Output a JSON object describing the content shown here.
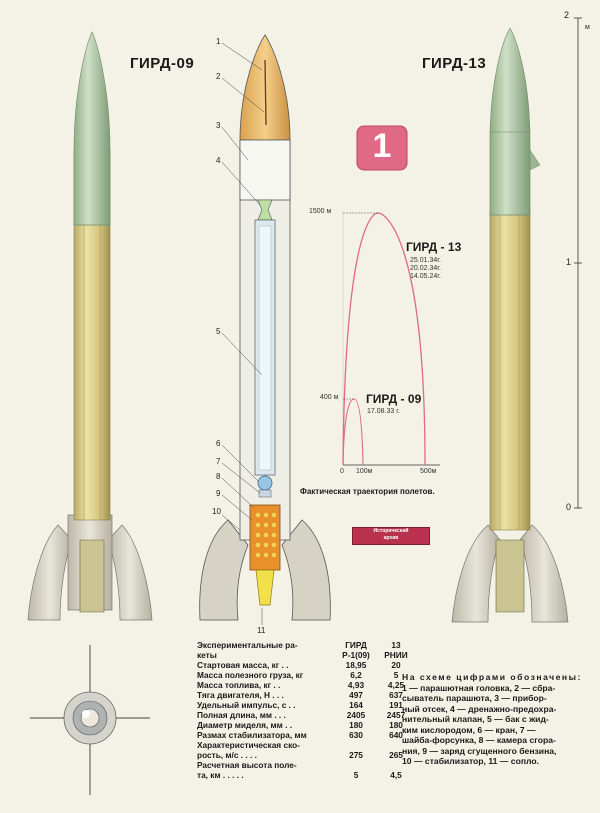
{
  "titles": {
    "left": "ГИРД-09",
    "right": "ГИРД-13"
  },
  "figure_number": "1",
  "part_labels": [
    "1",
    "2",
    "3",
    "4",
    "5",
    "6",
    "7",
    "8",
    "9",
    "10",
    "11"
  ],
  "scale": {
    "top": "2",
    "unit": "м",
    "middle": "1",
    "bottom": "0"
  },
  "trajectory": {
    "caption": "Фактическая траектория полетов.",
    "y_label_high": "1500 м",
    "y_label_low": "400 м",
    "x_origin": "0",
    "x_label_1": "100м",
    "x_label_2": "500м",
    "g13_name": "ГИРД - 13",
    "g13_dates": [
      "25.01.34г.",
      "20.02.34г.",
      "14.05.24г."
    ],
    "g09_name": "ГИРД - 09",
    "g09_date": "17.08.33 г."
  },
  "stamp": {
    "line1": "Исторический",
    "line2": "архив"
  },
  "specs": {
    "header": {
      "label": "Экспериментальные ра-\nкеты",
      "col1": "ГИРД\nР-1(09)",
      "col2": "13\nРНИИ"
    },
    "rows": [
      {
        "label": "Стартовая масса, кг . .",
        "v1": "18,95",
        "v2": "20"
      },
      {
        "label": "Масса полезного груза, кг",
        "v1": "6,2",
        "v2": "5"
      },
      {
        "label": "Масса топлива, кг . .",
        "v1": "4,93",
        "v2": "4,25"
      },
      {
        "label": "Тяга двигателя, Н . . .",
        "v1": "497",
        "v2": "637"
      },
      {
        "label": "Удельный импульс, с . .",
        "v1": "164",
        "v2": "191"
      },
      {
        "label": "Полная длина, мм . . .",
        "v1": "2405",
        "v2": "2457"
      },
      {
        "label": "Диаметр миделя, мм . .",
        "v1": "180",
        "v2": "180"
      },
      {
        "label": "Размах стабилизатора, мм",
        "v1": "630",
        "v2": "640"
      },
      {
        "label": "Характеристическая ско-\nрость, м/с . . . .",
        "v1": "275",
        "v2": "265"
      },
      {
        "label": "Расчетная высота поле-\nта, км . . . . .",
        "v1": "5",
        "v2": "4,5"
      }
    ]
  },
  "legend": {
    "lines": [
      "На схеме цифрами обозначены:",
      "1 — парашютная головка, 2 — сбра-",
      "сыватель парашюта, 3 — прибор-",
      "ный отсек, 4 — дренажно-предохра-",
      "нительный клапан, 5 — бак с жид-",
      "ким кислородом, 6 — кран, 7 —",
      "шайба-форсунка, 8 — камера сгора-",
      "ния, 9 — заряд сгущенного бензина,",
      "10 — стабилизатор, 11 — сопло."
    ]
  },
  "colors": {
    "nose_green": "#a9c4a0",
    "body_gold": "#d6c987",
    "fin_gray": "#d8d4c8",
    "curve_pink": "#e06a86",
    "nose_orange": "#eab867",
    "combustion_orange": "#e8902a",
    "nozzle_yellow": "#f2e04a"
  }
}
